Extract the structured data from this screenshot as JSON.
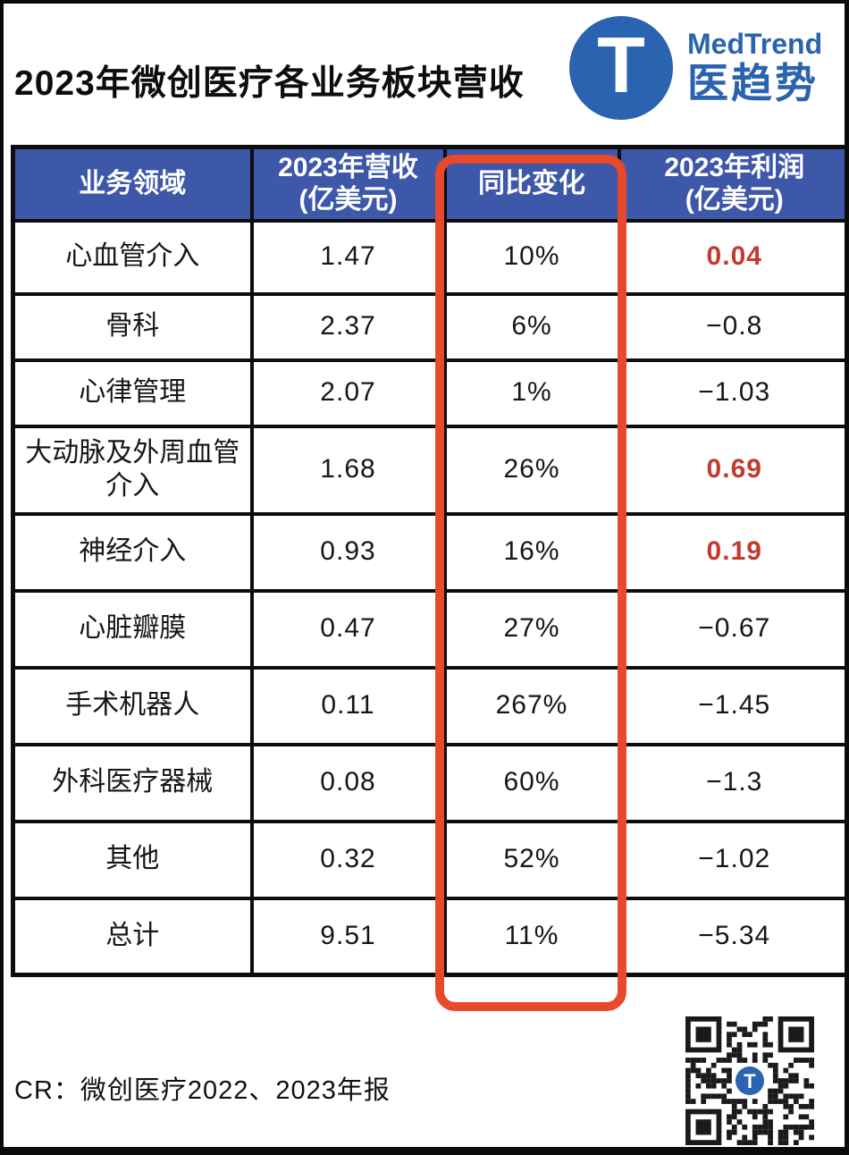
{
  "page": {
    "title": "2023年微创医疗各业务板块营收"
  },
  "logo": {
    "monogram": "T",
    "brand_en": "MedTrend",
    "brand_zh": "医趋势"
  },
  "chart_data": {
    "type": "table",
    "title": "2023年微创医疗各业务板块营收",
    "columns": [
      {
        "key": "segment",
        "label_lines": [
          "业务领域"
        ]
      },
      {
        "key": "revenue",
        "label_lines": [
          "2023年营收",
          "(亿美元)"
        ]
      },
      {
        "key": "yoy",
        "label_lines": [
          "同比变化"
        ]
      },
      {
        "key": "profit",
        "label_lines": [
          "2023年利润",
          "(亿美元)"
        ]
      }
    ],
    "highlighted_column": "同比变化",
    "rows": [
      {
        "segment": "心血管介入",
        "revenue": "1.47",
        "yoy": "10%",
        "profit": "0.04",
        "profit_red": true
      },
      {
        "segment": "骨科",
        "revenue": "2.37",
        "yoy": "6%",
        "profit": "−0.8",
        "profit_red": false
      },
      {
        "segment": "心律管理",
        "revenue": "2.07",
        "yoy": "1%",
        "profit": "−1.03",
        "profit_red": false
      },
      {
        "segment": "大动脉及外周血管介入",
        "revenue": "1.68",
        "yoy": "26%",
        "profit": "0.69",
        "profit_red": true
      },
      {
        "segment": "神经介入",
        "revenue": "0.93",
        "yoy": "16%",
        "profit": "0.19",
        "profit_red": true
      },
      {
        "segment": "心脏瓣膜",
        "revenue": "0.47",
        "yoy": "27%",
        "profit": "−0.67",
        "profit_red": false
      },
      {
        "segment": "手术机器人",
        "revenue": "0.11",
        "yoy": "267%",
        "profit": "−1.45",
        "profit_red": false
      },
      {
        "segment": "外科医疗器械",
        "revenue": "0.08",
        "yoy": "60%",
        "profit": "−1.3",
        "profit_red": false
      },
      {
        "segment": "其他",
        "revenue": "0.32",
        "yoy": "52%",
        "profit": "−1.02",
        "profit_red": false
      },
      {
        "segment": "总计",
        "revenue": "9.51",
        "yoy": "11%",
        "profit": "−5.34",
        "profit_red": false
      }
    ]
  },
  "footer": {
    "source": "CR：微创医疗2022、2023年报"
  },
  "colors": {
    "header_bg": "#3D57A9",
    "table_border": "#0d0d0d",
    "highlight_red": "#E7492C",
    "profit_positive_red": "#C23B30",
    "logo_blue": "#2A63B0"
  }
}
